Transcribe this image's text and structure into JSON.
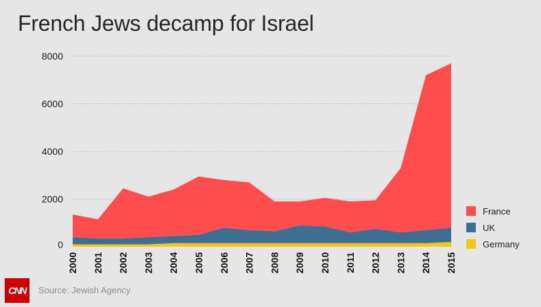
{
  "title": "French Jews decamp for Israel",
  "source": "Source: Jewish Agency",
  "logo_text": "CNN",
  "colors": {
    "France": "#ff4d4d",
    "UK": "#3f6e93",
    "Germany": "#f5c518",
    "background": "#e6e6e6",
    "logo": "#cc0000"
  },
  "legend": [
    {
      "label": "France"
    },
    {
      "label": "UK"
    },
    {
      "label": "Germany"
    }
  ],
  "chart_data": {
    "type": "area",
    "stacked": true,
    "title": "French Jews decamp for Israel",
    "xlabel": "",
    "ylabel": "",
    "ylim": [
      0,
      8000
    ],
    "yticks": [
      "0",
      "2000",
      "4000",
      "6000",
      "8000"
    ],
    "grid": true,
    "legend_position": "right",
    "categories": [
      "2000",
      "2001",
      "2002",
      "2003",
      "2004",
      "2005",
      "2006",
      "2007",
      "2008",
      "2009",
      "2010",
      "2011",
      "2012",
      "2013",
      "2014",
      "2015"
    ],
    "series": [
      {
        "name": "Germany",
        "values": [
          100,
          100,
          100,
          100,
          150,
          150,
          150,
          150,
          150,
          150,
          150,
          150,
          150,
          150,
          150,
          200
        ]
      },
      {
        "name": "UK",
        "values": [
          300,
          250,
          250,
          300,
          300,
          350,
          650,
          550,
          500,
          750,
          700,
          450,
          600,
          450,
          550,
          600
        ]
      },
      {
        "name": "France",
        "values": [
          950,
          800,
          2100,
          1700,
          1950,
          2450,
          2000,
          2000,
          1250,
          1000,
          1200,
          1300,
          1200,
          2700,
          6500,
          6900
        ]
      }
    ]
  }
}
